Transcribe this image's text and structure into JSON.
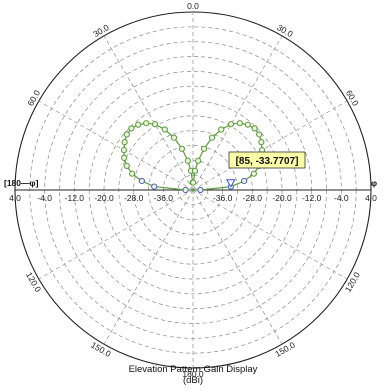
{
  "chart_data": {
    "type": "polar",
    "title": "Elevation Pattern Gain Display",
    "unit": "(dBi)",
    "radial_ticks": [
      "4.0",
      "-4.0",
      "-12.0",
      "-20.0",
      "-28.0",
      "-36.0"
    ],
    "rlim": [
      -44,
      4
    ],
    "angle_ticks": [
      {
        "angle": 0,
        "label": "0.0"
      },
      {
        "angle": 30,
        "label": "30.0"
      },
      {
        "angle": 60,
        "label": "60.0"
      },
      {
        "angle": 120,
        "label": "120.0"
      },
      {
        "angle": 150,
        "label": "150.0"
      },
      {
        "angle": 180,
        "label": "180.0"
      },
      {
        "angle": -150,
        "label": "150.0"
      },
      {
        "angle": -120,
        "label": "120.0"
      },
      {
        "angle": -60,
        "label": "60.0"
      },
      {
        "angle": -30,
        "label": "30.0"
      }
    ],
    "left_label": "[180—φ]",
    "right_label": "φ",
    "series": [
      {
        "color": "#5a9a3a",
        "points": [
          {
            "angle": 2,
            "gain": -42.0
          },
          {
            "angle": 6,
            "gain": -38.8
          },
          {
            "angle": 10,
            "gain": -36.0
          },
          {
            "angle": 15,
            "gain": -32.5
          },
          {
            "angle": 20,
            "gain": -29.0
          },
          {
            "angle": 25,
            "gain": -26.0
          },
          {
            "angle": 30,
            "gain": -23.5
          },
          {
            "angle": 35,
            "gain": -22.0
          },
          {
            "angle": 40,
            "gain": -21.0
          },
          {
            "angle": 45,
            "gain": -20.5
          },
          {
            "angle": 50,
            "gain": -20.7
          },
          {
            "angle": 55,
            "gain": -21.5
          },
          {
            "angle": 60,
            "gain": -22.5
          },
          {
            "angle": 65,
            "gain": -23.5
          },
          {
            "angle": 70,
            "gain": -25.0
          },
          {
            "angle": 75,
            "gain": -27.0
          },
          {
            "angle": 80,
            "gain": -30.0
          },
          {
            "angle": 85,
            "gain": -33.7707
          },
          {
            "angle": 90,
            "gain": -42.0
          },
          {
            "angle": -2,
            "gain": -42.0
          },
          {
            "angle": -6,
            "gain": -38.8
          },
          {
            "angle": -10,
            "gain": -36.0
          },
          {
            "angle": -15,
            "gain": -32.5
          },
          {
            "angle": -20,
            "gain": -29.0
          },
          {
            "angle": -25,
            "gain": -26.0
          },
          {
            "angle": -30,
            "gain": -23.5
          },
          {
            "angle": -35,
            "gain": -22.0
          },
          {
            "angle": -40,
            "gain": -21.0
          },
          {
            "angle": -45,
            "gain": -20.5
          },
          {
            "angle": -50,
            "gain": -20.7
          },
          {
            "angle": -55,
            "gain": -21.5
          },
          {
            "angle": -60,
            "gain": -22.5
          },
          {
            "angle": -65,
            "gain": -23.5
          },
          {
            "angle": -70,
            "gain": -25.0
          },
          {
            "angle": -75,
            "gain": -27.0
          },
          {
            "angle": -80,
            "gain": -30.0
          },
          {
            "angle": -85,
            "gain": -33.5
          },
          {
            "angle": -90,
            "gain": -42.0
          }
        ]
      }
    ],
    "tooltip": {
      "text": "[85, -33.7707]",
      "angle": 85,
      "gain": -33.7707
    }
  }
}
